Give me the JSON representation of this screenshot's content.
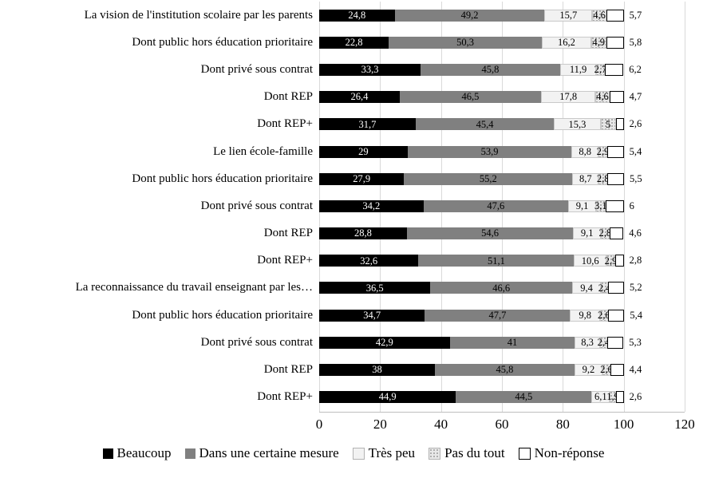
{
  "chart_data": {
    "type": "bar",
    "orientation": "horizontal-stacked",
    "title": "",
    "xlabel": "",
    "ylabel": "",
    "grid": true,
    "legend_position": "bottom",
    "series": [
      "Beaucoup",
      "Dans une certaine mesure",
      "Très peu",
      "Pas du tout",
      "Non-réponse"
    ],
    "colors": {
      "beaucoup": "#000000",
      "dans_une_certaine_mesure": "#808080",
      "tres_peu": "#f2f2f2",
      "pas_du_tout": "#e8e8e8",
      "non_reponse": "#ffffff",
      "gridline": "#d9d9d9"
    },
    "x_axis": {
      "min": 0,
      "max": 120,
      "ticks": [
        "0",
        "20",
        "40",
        "60",
        "80",
        "100",
        "120"
      ]
    },
    "rows": [
      {
        "label": "La vision de l'institution scolaire par les parents",
        "values": [
          24.8,
          49.2,
          15.7,
          4.6,
          5.7
        ],
        "labels": [
          "24,8",
          "49,2",
          "15,7",
          "4,6",
          "5,7"
        ]
      },
      {
        "label": "Dont public hors éducation prioritaire",
        "values": [
          22.8,
          50.3,
          16.2,
          4.9,
          5.8
        ],
        "labels": [
          "22,8",
          "50,3",
          "16,2",
          "4,9",
          "5,8"
        ]
      },
      {
        "label": "Dont privé sous contrat",
        "values": [
          33.3,
          45.8,
          11.9,
          2.7,
          6.2
        ],
        "labels": [
          "33,3",
          "45,8",
          "11,9",
          "2,7",
          "6,2"
        ]
      },
      {
        "label": "Dont REP",
        "values": [
          26.4,
          46.5,
          17.8,
          4.6,
          4.7
        ],
        "labels": [
          "26,4",
          "46,5",
          "17,8",
          "4,6",
          "4,7"
        ]
      },
      {
        "label": "Dont REP+",
        "values": [
          31.7,
          45.4,
          15.3,
          5,
          2.6
        ],
        "labels": [
          "31,7",
          "45,4",
          "15,3",
          "5",
          "2,6"
        ]
      },
      {
        "label": "Le lien école-famille",
        "values": [
          29,
          53.9,
          8.8,
          2.9,
          5.4
        ],
        "labels": [
          "29",
          "53,9",
          "8,8",
          "2,9",
          "5,4"
        ]
      },
      {
        "label": "Dont public hors éducation prioritaire",
        "values": [
          27.9,
          55.2,
          8.7,
          2.8,
          5.5
        ],
        "labels": [
          "27,9",
          "55,2",
          "8,7",
          "2,8",
          "5,5"
        ]
      },
      {
        "label": "Dont privé sous contrat",
        "values": [
          34.2,
          47.6,
          9.1,
          3.1,
          6
        ],
        "labels": [
          "34,2",
          "47,6",
          "9,1",
          "3,1",
          "6"
        ]
      },
      {
        "label": "Dont REP",
        "values": [
          28.8,
          54.6,
          9.1,
          2.8,
          4.6
        ],
        "labels": [
          "28,8",
          "54,6",
          "9,1",
          "2,8",
          "4,6"
        ]
      },
      {
        "label": "Dont REP+",
        "values": [
          32.6,
          51.1,
          10.6,
          2.9,
          2.8
        ],
        "labels": [
          "32,6",
          "51,1",
          "10,6",
          "2,9",
          "2,8"
        ]
      },
      {
        "label": "La reconnaissance du travail enseignant par les…",
        "values": [
          36.5,
          46.6,
          9.4,
          2.4,
          5.2
        ],
        "labels": [
          "36,5",
          "46,6",
          "9,4",
          "2,4",
          "5,2"
        ]
      },
      {
        "label": "Dont public hors éducation prioritaire",
        "values": [
          34.7,
          47.7,
          9.8,
          2.6,
          5.4
        ],
        "labels": [
          "34,7",
          "47,7",
          "9,8",
          "2,6",
          "5,4"
        ]
      },
      {
        "label": "Dont privé sous contrat",
        "values": [
          42.9,
          41,
          8.3,
          2.4,
          5.3
        ],
        "labels": [
          "42,9",
          "41",
          "8,3",
          "2,4",
          "5,3"
        ]
      },
      {
        "label": "Dont REP",
        "values": [
          38,
          45.8,
          9.2,
          2.6,
          4.4
        ],
        "labels": [
          "38",
          "45,8",
          "9,2",
          "2,6",
          "4,4"
        ]
      },
      {
        "label": "Dont REP+",
        "values": [
          44.9,
          44.5,
          6.1,
          1.9,
          2.6
        ],
        "labels": [
          "44,9",
          "44,5",
          "6,1",
          "1,9",
          "2,6"
        ]
      }
    ]
  }
}
